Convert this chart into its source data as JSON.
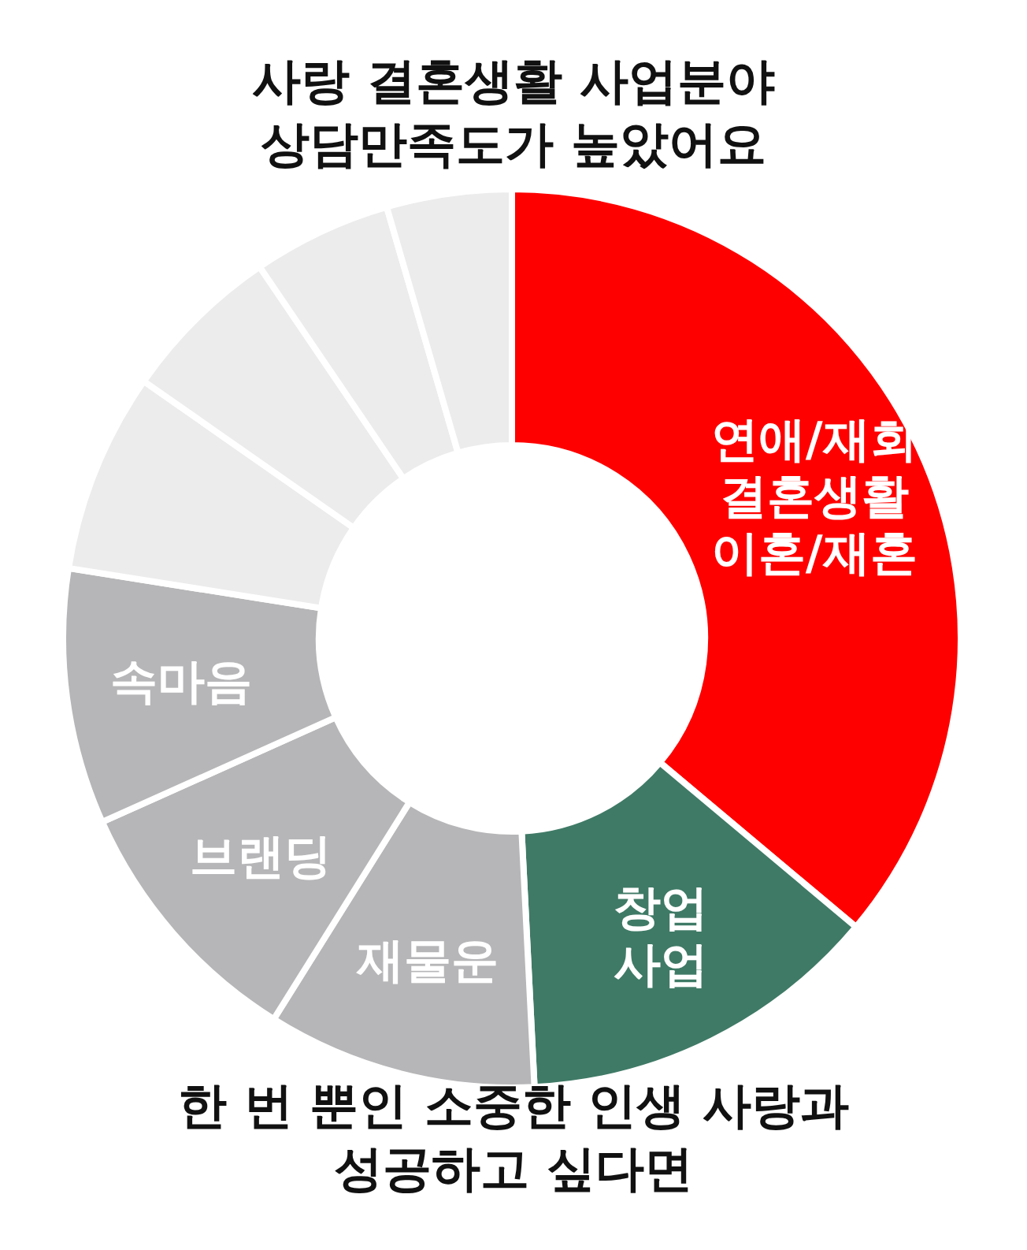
{
  "chart_data": {
    "type": "donut",
    "title": "사랑 결혼생활 사업분야\n상담만족도가 높았어요",
    "categories": [
      "연애/재회\n결혼생활\n이혼/재혼",
      "창업\n사업",
      "재물운",
      "브랜딩",
      "속마음",
      null,
      null,
      null,
      null
    ],
    "values": [
      36.1,
      13.1,
      9.7,
      9.4,
      9.2,
      7.2,
      5.8,
      5.0,
      4.5
    ],
    "colors": [
      "#ff0000",
      "#3f7a66",
      "#b6b6b8",
      "#b6b6b8",
      "#b6b6b8",
      "#ececec",
      "#ececec",
      "#ececec",
      "#ececec"
    ],
    "annotations": [
      "한 번 뿐인 소중한 인생 사랑과\n성공하고 싶다면"
    ]
  }
}
